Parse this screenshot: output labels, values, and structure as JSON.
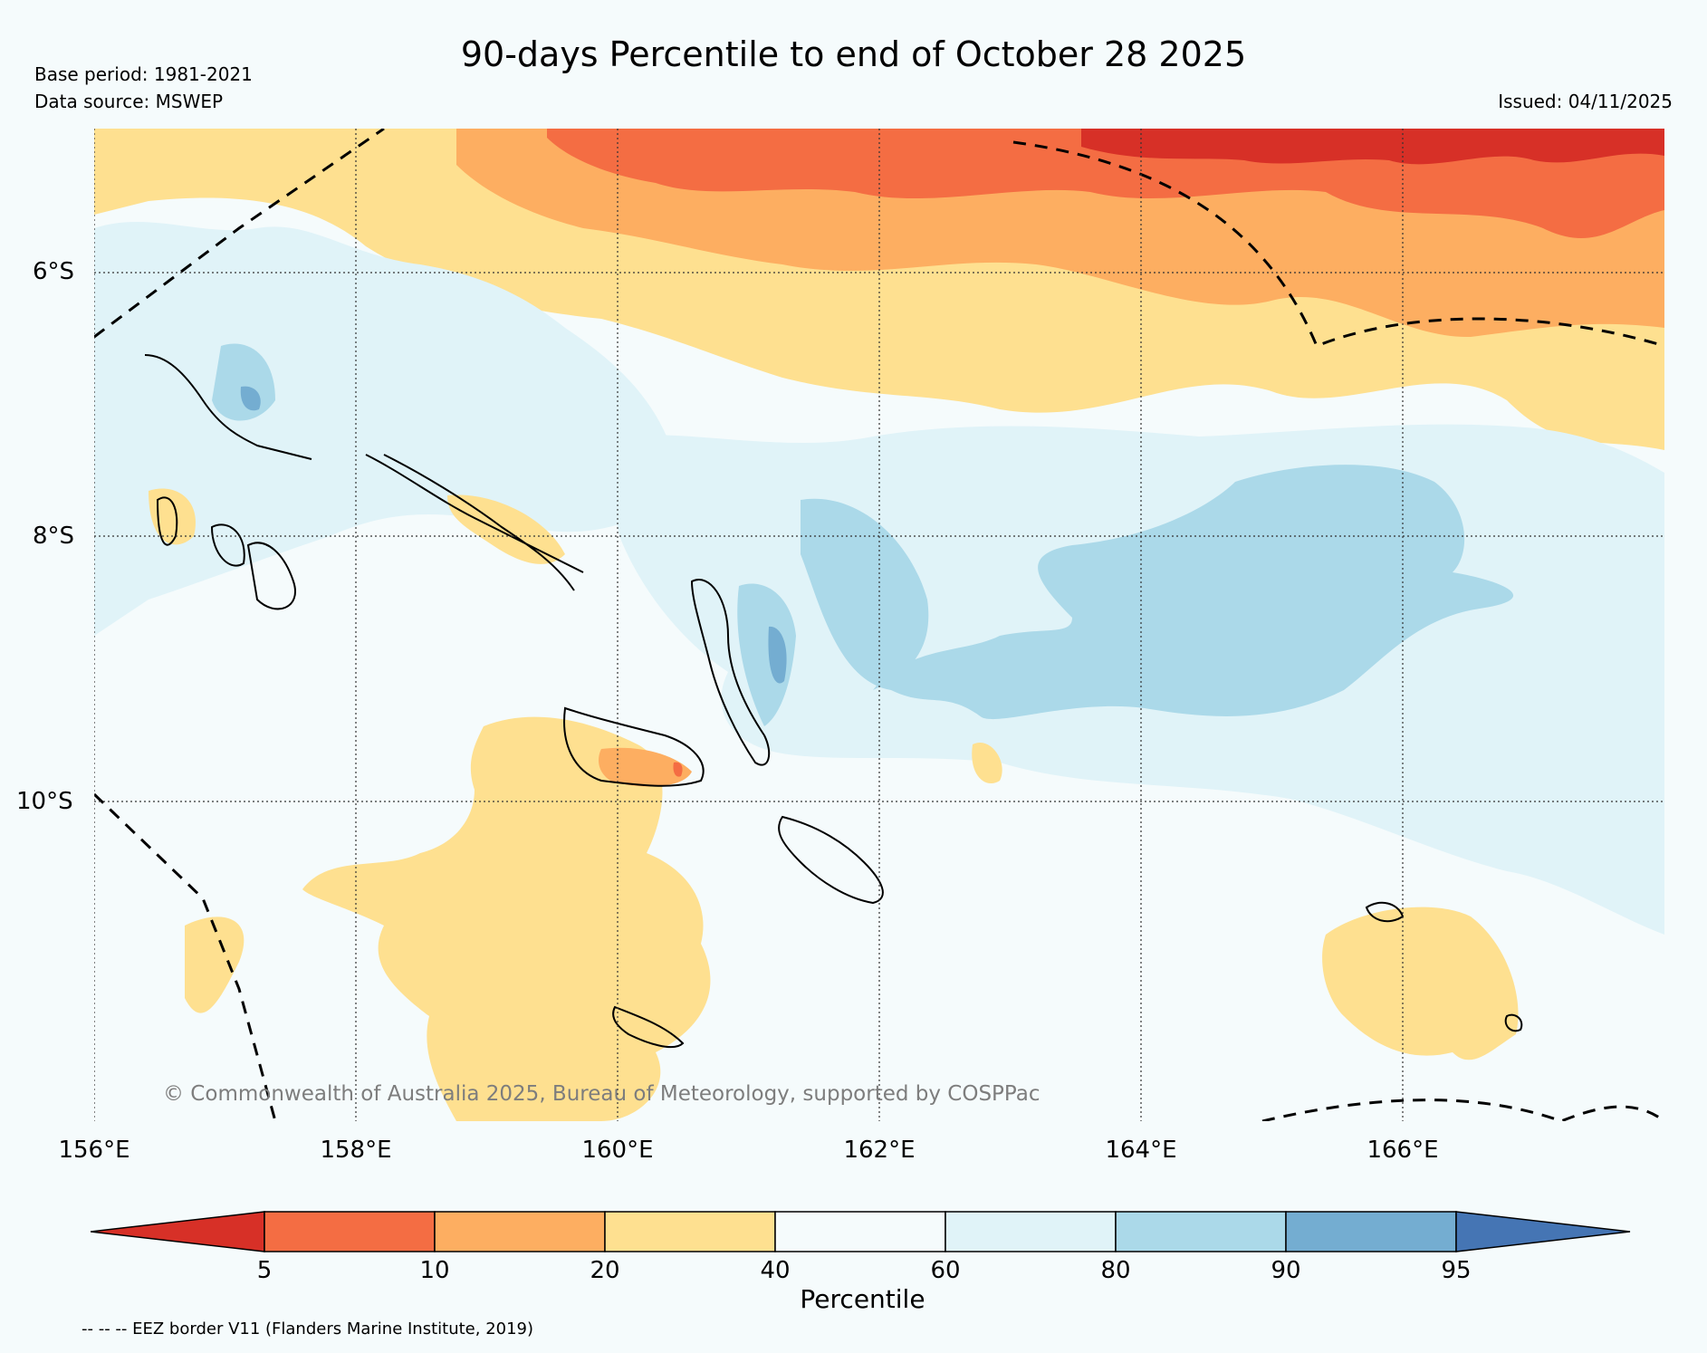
{
  "title": "90-days Percentile to end of October 28 2025",
  "base_period": "Base period: 1981-2021",
  "data_source": "Data source: MSWEP",
  "issued": "Issued: 04/11/2025",
  "copyright": "© Commonwealth of Australia 2025, Bureau of Meteorology, supported by COSPPac",
  "eez_note": "-- -- -- EEZ border V11 (Flanders Marine Institute, 2019)",
  "axes": {
    "lat_labels": [
      "6°S",
      "8°S",
      "10°S"
    ],
    "lon_labels": [
      "156°E",
      "158°E",
      "160°E",
      "162°E",
      "164°E",
      "166°E"
    ]
  },
  "colorbar": {
    "label": "Percentile",
    "ticks": [
      "5",
      "10",
      "20",
      "40",
      "60",
      "80",
      "90",
      "95"
    ],
    "colors": [
      "#d73027",
      "#f46d43",
      "#fdae61",
      "#fee090",
      "#f5fbfc",
      "#e0f3f8",
      "#abd9e9",
      "#74add1",
      "#4575b4"
    ]
  }
}
